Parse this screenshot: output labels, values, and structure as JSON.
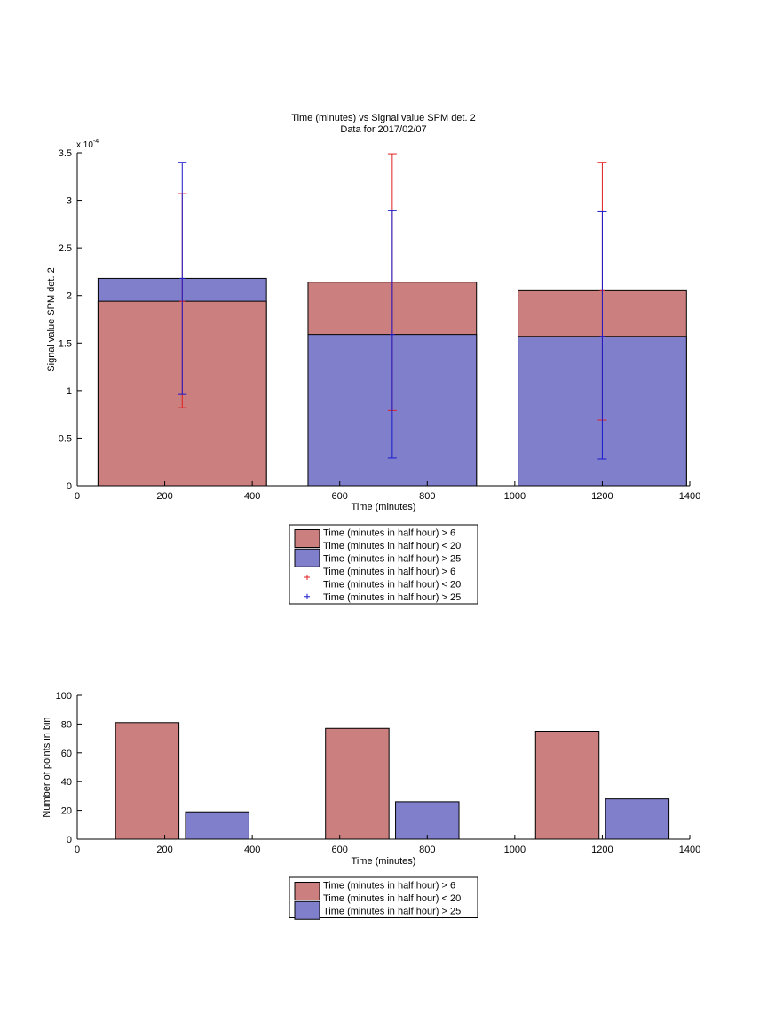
{
  "colors": {
    "red_fill": "#cc7f7f",
    "blue_fill": "#7f7fcc",
    "red_err": "#e02020",
    "blue_err": "#1a1acc"
  },
  "chart_data": [
    {
      "type": "bar",
      "title": "Time (minutes) vs Signal value SPM det. 2",
      "subtitle": "Data for 2017/02/07",
      "xlabel": "Time (minutes)",
      "ylabel": "Signal value SPM det. 2",
      "y_exponent_label": "x 10",
      "y_exponent_sup": "-4",
      "xlim": [
        0,
        1400
      ],
      "ylim": [
        0,
        3.5
      ],
      "xticks": [
        0,
        200,
        400,
        600,
        800,
        1000,
        1200,
        1400
      ],
      "yticks": [
        0,
        0.5,
        1,
        1.5,
        2,
        2.5,
        3,
        3.5
      ],
      "ytick_labels": [
        "0",
        "0.5",
        "1",
        "1.5",
        "2",
        "2.5",
        "3",
        "3.5"
      ],
      "bar_centers": [
        240,
        720,
        1200
      ],
      "bar_width": 385,
      "series": [
        {
          "name": "Time (minutes in half hour) > 6\nTime (minutes in half hour) < 20",
          "color": "red_fill",
          "values": [
            1.94,
            2.14,
            2.05
          ]
        },
        {
          "name": "Time (minutes in half hour) > 25",
          "color": "blue_fill",
          "values": [
            2.18,
            1.59,
            1.57
          ]
        }
      ],
      "error_bars": [
        {
          "name": "Time (minutes in half hour) > 6\nTime (minutes in half hour) < 20",
          "color": "red_err",
          "lower": [
            0.82,
            0.79,
            0.69
          ],
          "upper": [
            3.07,
            3.49,
            3.4
          ],
          "center": [
            1.94,
            2.14,
            2.05
          ]
        },
        {
          "name": "Time (minutes in half hour) > 25",
          "color": "blue_err",
          "lower": [
            0.96,
            0.29,
            0.28
          ],
          "upper": [
            3.4,
            2.89,
            2.88
          ],
          "center": [
            2.18,
            1.59,
            1.57
          ]
        }
      ],
      "legend": [
        {
          "kind": "patch",
          "color": "red_fill",
          "lines": [
            "Time (minutes in half hour) > 6",
            "Time (minutes in half hour) < 20"
          ]
        },
        {
          "kind": "patch",
          "color": "blue_fill",
          "lines": [
            "Time (minutes in half hour) > 25"
          ]
        },
        {
          "kind": "plus",
          "color": "red_err",
          "lines": [
            "Time (minutes in half hour) > 6",
            "Time (minutes in half hour) < 20"
          ]
        },
        {
          "kind": "plus",
          "color": "blue_err",
          "lines": [
            "Time (minutes in half hour) > 25"
          ]
        }
      ],
      "legend_placement": "below"
    },
    {
      "type": "bar",
      "xlabel": "Time (minutes)",
      "ylabel": "Number of points in bin",
      "xlim": [
        0,
        1400
      ],
      "ylim": [
        0,
        100
      ],
      "xticks": [
        0,
        200,
        400,
        600,
        800,
        1000,
        1200,
        1400
      ],
      "yticks": [
        0,
        20,
        40,
        60,
        80,
        100
      ],
      "bar_width": 145,
      "series": [
        {
          "name": "Time (minutes in half hour) > 6\nTime (minutes in half hour) < 20",
          "color": "red_fill",
          "x": [
            160,
            640,
            1120
          ],
          "values": [
            81,
            77,
            75
          ]
        },
        {
          "name": "Time (minutes in half hour) > 25",
          "color": "blue_fill",
          "x": [
            320,
            800,
            1280
          ],
          "values": [
            19,
            26,
            28
          ]
        }
      ],
      "legend": [
        {
          "kind": "patch",
          "color": "red_fill",
          "lines": [
            "Time (minutes in half hour) > 6",
            "Time (minutes in half hour) < 20"
          ]
        },
        {
          "kind": "patch",
          "color": "blue_fill",
          "lines": [
            "Time (minutes in half hour) > 25"
          ]
        }
      ],
      "legend_placement": "below"
    }
  ]
}
